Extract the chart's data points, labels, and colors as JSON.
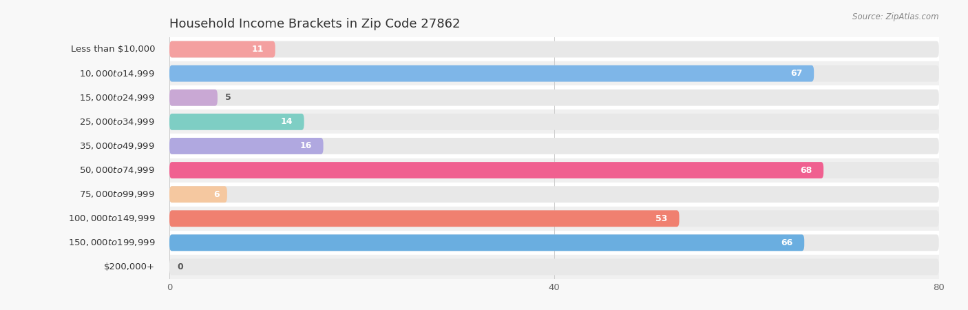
{
  "title": "Household Income Brackets in Zip Code 27862",
  "source": "Source: ZipAtlas.com",
  "categories": [
    "Less than $10,000",
    "$10,000 to $14,999",
    "$15,000 to $24,999",
    "$25,000 to $34,999",
    "$35,000 to $49,999",
    "$50,000 to $74,999",
    "$75,000 to $99,999",
    "$100,000 to $149,999",
    "$150,000 to $199,999",
    "$200,000+"
  ],
  "values": [
    11,
    67,
    5,
    14,
    16,
    68,
    6,
    53,
    66,
    0
  ],
  "bar_colors": [
    "#F4A0A0",
    "#7EB6E8",
    "#C9A8D4",
    "#7ECEC4",
    "#B0A8E0",
    "#F06090",
    "#F5C8A0",
    "#F08070",
    "#6AAEE0",
    "#D4B8D8"
  ],
  "row_bg_colors": [
    "#ffffff",
    "#eeeeee"
  ],
  "xlim": [
    0,
    80
  ],
  "xticks": [
    0,
    40,
    80
  ],
  "background_color": "#f0f0f0",
  "bar_bg_color": "#e0e0e0",
  "title_fontsize": 13,
  "label_fontsize": 9.5,
  "value_fontsize": 9
}
